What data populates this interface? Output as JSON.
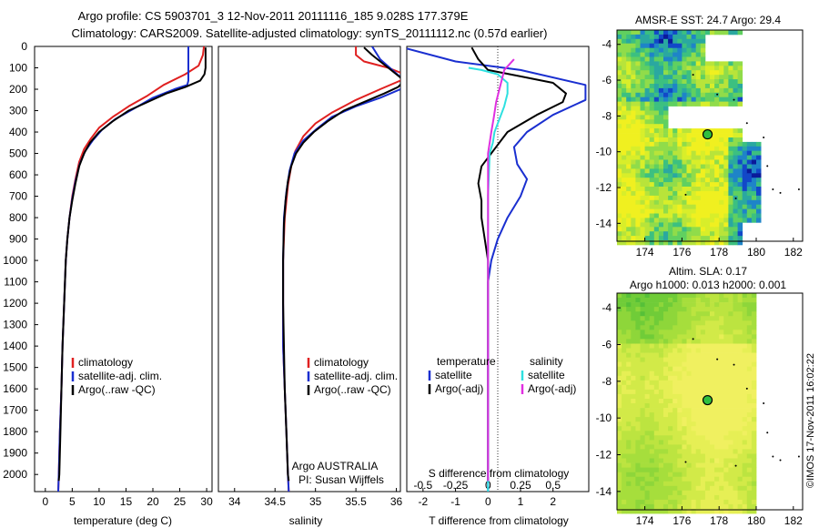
{
  "title": {
    "line1": "Argo profile: CS 5903701_3 12-Nov-2011 20111116_185 9.028S 177.379E",
    "line2": "Climatology: CARS2009. Satellite-adjusted climatology: synTS_20111112.nc (0.57d earlier)"
  },
  "colors": {
    "climatology": "#e02020",
    "satellite": "#1a2fd0",
    "argo": "#000000",
    "cyan": "#2ee0e0",
    "magenta": "#e030e0"
  },
  "chart_data": [
    {
      "type": "line",
      "panel": "temperature",
      "xlabel": "temperature (deg C)",
      "xlim": [
        -2,
        31
      ],
      "xticks": [
        0,
        5,
        10,
        15,
        20,
        25,
        30
      ],
      "ylim": [
        2080,
        0
      ],
      "yticks": [
        0,
        100,
        200,
        300,
        400,
        500,
        600,
        700,
        800,
        900,
        1000,
        1100,
        1200,
        1300,
        1400,
        1500,
        1600,
        1700,
        1800,
        1900,
        2000
      ],
      "legend": [
        "climatology",
        "satellite-adj. clim.",
        "Argo(..raw -QC)"
      ],
      "series": [
        {
          "name": "climatology",
          "color_key": "climatology",
          "points": [
            [
              29.5,
              0
            ],
            [
              29.3,
              40
            ],
            [
              28.5,
              90
            ],
            [
              26,
              130
            ],
            [
              22,
              180
            ],
            [
              19,
              230
            ],
            [
              15.5,
              280
            ],
            [
              12.5,
              330
            ],
            [
              10,
              380
            ],
            [
              8.5,
              430
            ],
            [
              7.2,
              480
            ],
            [
              6.3,
              540
            ],
            [
              5.6,
              620
            ],
            [
              5,
              700
            ],
            [
              4.5,
              800
            ],
            [
              4.1,
              900
            ],
            [
              3.8,
              1000
            ],
            [
              3.5,
              1200
            ],
            [
              3.2,
              1400
            ],
            [
              3,
              1600
            ],
            [
              2.7,
              1800
            ],
            [
              2.5,
              2000
            ],
            [
              2.4,
              2080
            ]
          ]
        },
        {
          "name": "satellite-adj. clim.",
          "color_key": "satellite",
          "points": [
            [
              26.6,
              0
            ],
            [
              26.6,
              160
            ],
            [
              26.4,
              180
            ],
            [
              24,
              200
            ],
            [
              20,
              240
            ],
            [
              16.5,
              290
            ],
            [
              13,
              340
            ],
            [
              10.5,
              390
            ],
            [
              8.8,
              440
            ],
            [
              7.4,
              490
            ],
            [
              6.4,
              550
            ],
            [
              5.6,
              630
            ],
            [
              5,
              710
            ],
            [
              4.5,
              800
            ],
            [
              4.1,
              900
            ],
            [
              3.8,
              1000
            ],
            [
              3.5,
              1200
            ],
            [
              3.2,
              1400
            ],
            [
              3,
              1600
            ],
            [
              2.7,
              1800
            ],
            [
              2.5,
              2000
            ],
            [
              2.4,
              2080
            ]
          ]
        },
        {
          "name": "Argo(..raw -QC)",
          "color_key": "argo",
          "points": [
            [
              29.8,
              5
            ],
            [
              29.8,
              100
            ],
            [
              29.6,
              130
            ],
            [
              28.8,
              160
            ],
            [
              26,
              190
            ],
            [
              22.5,
              220
            ],
            [
              19,
              260
            ],
            [
              15.5,
              300
            ],
            [
              12.5,
              350
            ],
            [
              10,
              400
            ],
            [
              8.3,
              450
            ],
            [
              7.2,
              500
            ],
            [
              6.3,
              560
            ],
            [
              5.6,
              640
            ],
            [
              5,
              720
            ],
            [
              4.5,
              800
            ],
            [
              4.1,
              900
            ],
            [
              3.8,
              1000
            ],
            [
              3.5,
              1200
            ],
            [
              3.2,
              1400
            ],
            [
              3,
              1600
            ],
            [
              2.8,
              1800
            ],
            [
              2.6,
              2000
            ],
            [
              2.5,
              2030
            ]
          ]
        }
      ]
    },
    {
      "type": "line",
      "panel": "salinity",
      "xlabel": "salinity",
      "xlim": [
        33.8,
        36.05
      ],
      "xticks": [
        34,
        34.5,
        35,
        35.5,
        36
      ],
      "xticklabels": [
        "34",
        "34.5",
        "35",
        "35.5",
        "36"
      ],
      "ylim": [
        2080,
        0
      ],
      "legend": [
        "climatology",
        "satellite-adj. clim.",
        "Argo(..raw -QC)"
      ],
      "annotation": [
        "Argo AUSTRALIA",
        "PI: Susan Wijffels"
      ],
      "series": [
        {
          "name": "climatology",
          "color_key": "climatology",
          "points": [
            [
              35.5,
              0
            ],
            [
              35.5,
              40
            ],
            [
              35.6,
              70
            ],
            [
              35.9,
              100
            ],
            [
              36.1,
              130
            ],
            [
              36.05,
              160
            ],
            [
              35.8,
              200
            ],
            [
              35.5,
              250
            ],
            [
              35.2,
              310
            ],
            [
              35,
              360
            ],
            [
              34.85,
              420
            ],
            [
              34.75,
              490
            ],
            [
              34.7,
              560
            ],
            [
              34.66,
              650
            ],
            [
              34.62,
              800
            ],
            [
              34.6,
              1000
            ],
            [
              34.6,
              1200
            ],
            [
              34.6,
              1400
            ],
            [
              34.62,
              1600
            ],
            [
              34.64,
              1800
            ],
            [
              34.66,
              2000
            ],
            [
              34.67,
              2080
            ]
          ]
        },
        {
          "name": "satellite-adj. clim.",
          "color_key": "satellite",
          "points": [
            [
              35.7,
              0
            ],
            [
              35.8,
              60
            ],
            [
              35.95,
              110
            ],
            [
              36.1,
              160
            ],
            [
              36.05,
              200
            ],
            [
              35.8,
              240
            ],
            [
              35.5,
              280
            ],
            [
              35.2,
              330
            ],
            [
              35,
              390
            ],
            [
              34.85,
              440
            ],
            [
              34.74,
              500
            ],
            [
              34.68,
              580
            ],
            [
              34.64,
              680
            ],
            [
              34.61,
              800
            ],
            [
              34.6,
              1000
            ],
            [
              34.6,
              1200
            ],
            [
              34.6,
              1400
            ],
            [
              34.62,
              1600
            ],
            [
              34.64,
              1800
            ],
            [
              34.66,
              2000
            ],
            [
              34.67,
              2080
            ]
          ]
        },
        {
          "name": "Argo(..raw -QC)",
          "color_key": "argo",
          "points": [
            [
              35.6,
              5
            ],
            [
              35.7,
              40
            ],
            [
              35.8,
              70
            ],
            [
              35.9,
              100
            ],
            [
              36,
              130
            ],
            [
              36.1,
              160
            ],
            [
              36.02,
              190
            ],
            [
              35.85,
              220
            ],
            [
              35.6,
              260
            ],
            [
              35.35,
              300
            ],
            [
              35.15,
              350
            ],
            [
              34.98,
              400
            ],
            [
              34.85,
              450
            ],
            [
              34.76,
              500
            ],
            [
              34.7,
              560
            ],
            [
              34.66,
              630
            ],
            [
              34.63,
              720
            ],
            [
              34.61,
              830
            ],
            [
              34.6,
              1000
            ],
            [
              34.6,
              1200
            ],
            [
              34.61,
              1400
            ],
            [
              34.62,
              1600
            ],
            [
              34.64,
              1800
            ],
            [
              34.66,
              2000
            ],
            [
              34.67,
              2030
            ]
          ]
        }
      ]
    },
    {
      "type": "line",
      "panel": "difference",
      "xlabel": "T difference from climatology",
      "xlabel_top": "S difference from climatology",
      "xlim": [
        -2.5,
        3.1
      ],
      "xticks": [
        -2,
        -1,
        0,
        1,
        2
      ],
      "s_xticks": [
        -0.5,
        -0.25,
        0,
        0.25,
        0.5
      ],
      "s_xticklabels": [
        "-0.5",
        "-0.25",
        "0",
        "0.25",
        "0.5"
      ],
      "ylim": [
        2080,
        0
      ],
      "legend_temperature": {
        "title": "temperature",
        "items": [
          "satellite",
          "Argo(-adj)"
        ]
      },
      "legend_salinity": {
        "title": "salinity",
        "items": [
          "satellite",
          "Argo(-adj)"
        ]
      },
      "series": [
        {
          "name": "temperature satellite",
          "color_key": "satellite",
          "points": [
            [
              -2.5,
              10
            ],
            [
              -1,
              70
            ],
            [
              1,
              110
            ],
            [
              3,
              180
            ],
            [
              3,
              250
            ],
            [
              2,
              320
            ],
            [
              1.2,
              400
            ],
            [
              0.8,
              470
            ],
            [
              0.9,
              550
            ],
            [
              1.2,
              620
            ],
            [
              1,
              700
            ],
            [
              0.6,
              800
            ],
            [
              0.3,
              900
            ],
            [
              0.1,
              1000
            ],
            [
              0,
              1100
            ],
            [
              0,
              1300
            ],
            [
              0,
              1600
            ],
            [
              0,
              2000
            ],
            [
              0,
              2080
            ]
          ]
        },
        {
          "name": "temperature Argo(-adj)",
          "color_key": "argo",
          "points": [
            [
              -0.5,
              5
            ],
            [
              -0.3,
              60
            ],
            [
              0,
              110
            ],
            [
              1,
              140
            ],
            [
              2,
              170
            ],
            [
              2.4,
              220
            ],
            [
              2.3,
              260
            ],
            [
              1.5,
              320
            ],
            [
              0.6,
              400
            ],
            [
              0.2,
              480
            ],
            [
              -0.2,
              560
            ],
            [
              -0.3,
              640
            ],
            [
              -0.2,
              720
            ],
            [
              -0.2,
              800
            ],
            [
              -0.1,
              900
            ],
            [
              0,
              1000
            ],
            [
              0,
              1200
            ],
            [
              0,
              1600
            ],
            [
              0,
              2000
            ],
            [
              0,
              2030
            ]
          ]
        },
        {
          "name": "salinity satellite",
          "color_key": "cyan",
          "points": [
            [
              -0.6,
              100
            ],
            [
              -0.2,
              110
            ],
            [
              0.3,
              130
            ],
            [
              0.6,
              170
            ],
            [
              0.6,
              220
            ],
            [
              0.5,
              280
            ],
            [
              0.35,
              340
            ],
            [
              0.2,
              400
            ],
            [
              0.15,
              450
            ],
            [
              0.05,
              500
            ],
            [
              0,
              700
            ],
            [
              0,
              1000
            ],
            [
              0,
              1500
            ],
            [
              0,
              2000
            ],
            [
              0,
              2080
            ]
          ]
        },
        {
          "name": "salinity Argo(-adj)",
          "color_key": "magenta",
          "points": [
            [
              0.8,
              60
            ],
            [
              0.5,
              110
            ],
            [
              0.45,
              140
            ],
            [
              0.35,
              200
            ],
            [
              0.25,
              260
            ],
            [
              0.18,
              330
            ],
            [
              0.1,
              400
            ],
            [
              0.05,
              450
            ],
            [
              0,
              500
            ],
            [
              0,
              700
            ],
            [
              0,
              1000
            ],
            [
              0,
              1500
            ],
            [
              0,
              2000
            ],
            [
              0,
              2030
            ]
          ]
        }
      ]
    },
    {
      "type": "heatmap",
      "panel": "sst_map",
      "title": "AMSR-E SST: 24.7  Argo: 29.4",
      "xlim": [
        172.5,
        182.5
      ],
      "ylim": [
        -15,
        -3.2
      ],
      "xticks": [
        174,
        176,
        178,
        180,
        182
      ],
      "yticks": [
        -4,
        -6,
        -8,
        -10,
        -12,
        -14
      ],
      "argo_position": [
        177.379,
        -9.028
      ]
    },
    {
      "type": "heatmap",
      "panel": "sla_map",
      "title_line1": "Altim. SLA: 0.17",
      "title_line2": "Argo h1000: 0.013  h2000: 0.001",
      "xlim": [
        172.5,
        182.5
      ],
      "ylim": [
        -15,
        -3.2
      ],
      "xticks": [
        174,
        176,
        178,
        180,
        182
      ],
      "yticks": [
        -4,
        -6,
        -8,
        -10,
        -12,
        -14
      ],
      "argo_position": [
        177.379,
        -9.028
      ]
    }
  ],
  "credit": "©IMOS 17-Nov-2011 16:02:22"
}
